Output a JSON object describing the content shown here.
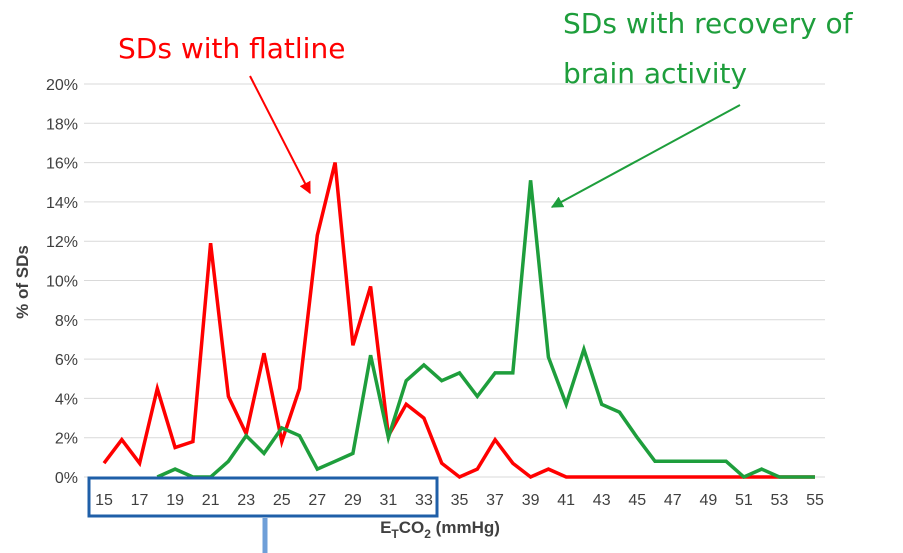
{
  "chart_data": {
    "type": "line",
    "title": "",
    "xlabel": "ETCO2 (mmHg)",
    "xlabel_parts": {
      "main": "E",
      "sub1": "T",
      "mid": "CO",
      "sub2": "2",
      "tail": " (mmHg)"
    },
    "ylabel": "% of SDs",
    "ylim": [
      0,
      20
    ],
    "yticks": [
      "0%",
      "2%",
      "4%",
      "6%",
      "8%",
      "10%",
      "12%",
      "14%",
      "16%",
      "18%",
      "20%"
    ],
    "ytick_values": [
      0,
      2,
      4,
      6,
      8,
      10,
      12,
      14,
      16,
      18,
      20
    ],
    "xlim": [
      15,
      55
    ],
    "xtick_values": [
      15,
      17,
      19,
      21,
      23,
      25,
      27,
      29,
      31,
      33,
      35,
      37,
      39,
      41,
      43,
      45,
      47,
      49,
      51,
      53,
      55
    ],
    "grid": true,
    "x": [
      15,
      16,
      17,
      18,
      19,
      20,
      21,
      22,
      23,
      24,
      25,
      26,
      27,
      28,
      29,
      30,
      31,
      32,
      33,
      34,
      35,
      36,
      37,
      38,
      39,
      40,
      41,
      42,
      43,
      44,
      45,
      46,
      47,
      48,
      49,
      50,
      51,
      52,
      53,
      54,
      55
    ],
    "series": [
      {
        "name": "SDs with flatline",
        "color": "#ff0000",
        "values": [
          0.7,
          1.9,
          0.7,
          4.5,
          1.5,
          1.8,
          11.9,
          4.1,
          2.2,
          6.3,
          1.8,
          4.5,
          12.3,
          16.0,
          6.7,
          9.7,
          2.1,
          3.7,
          3.0,
          0.7,
          0.0,
          0.4,
          1.9,
          0.7,
          0.0,
          0.4,
          0,
          0,
          0,
          0,
          0,
          0,
          0,
          0,
          0,
          0,
          0,
          0,
          0,
          0,
          0
        ]
      },
      {
        "name": "SDs with recovery of brain activity",
        "color": "#1e9e3c",
        "values": [
          null,
          null,
          null,
          0.0,
          0.4,
          0.0,
          0.0,
          0.8,
          2.1,
          1.2,
          2.5,
          2.1,
          0.4,
          0.8,
          1.2,
          6.2,
          2.0,
          4.9,
          5.7,
          4.9,
          5.3,
          4.1,
          5.3,
          5.3,
          15.1,
          6.1,
          3.7,
          6.5,
          3.7,
          3.3,
          2.0,
          0.8,
          0.8,
          0.8,
          0.8,
          0.8,
          0.0,
          0.4,
          0.0,
          0.0,
          0.0
        ]
      }
    ],
    "annotations": [
      {
        "text": "SDs with flatline",
        "color": "#ff0000"
      },
      {
        "text": "SDs with recovery of",
        "color": "#1e9e3c"
      },
      {
        "text": "brain activity",
        "color": "#1e9e3c"
      }
    ],
    "highlight_box_color": "#1f5fa8"
  }
}
